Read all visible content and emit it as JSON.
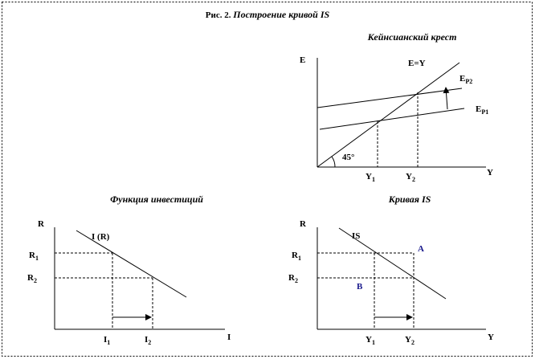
{
  "title": {
    "label": "Рис. 2.",
    "text": "Построение кривой IS"
  },
  "panels": [
    {
      "title": "Кейнсианский крест",
      "y_axis": "E",
      "x_axis": "Y",
      "line_45": "E=Y",
      "ep2": {
        "base": "E",
        "sub": "P2"
      },
      "ep1": {
        "base": "E",
        "sub": "P1"
      },
      "angle": "45°",
      "y1": {
        "base": "Y",
        "sub": "1"
      },
      "y2": {
        "base": "Y",
        "sub": "2"
      }
    },
    {
      "title": "Функция инвестиций",
      "y_axis": "R",
      "x_axis": "I",
      "curve": "I (R)",
      "r1": {
        "base": "R",
        "sub": "1"
      },
      "r2": {
        "base": "R",
        "sub": "2"
      },
      "i1": {
        "base": "I",
        "sub": "1"
      },
      "i2": {
        "base": "I",
        "sub": "2"
      }
    },
    {
      "title": "Кривая IS",
      "y_axis": "R",
      "x_axis": "Y",
      "curve": "IS",
      "point_a": "A",
      "point_b": "B",
      "r1": {
        "base": "R",
        "sub": "1"
      },
      "r2": {
        "base": "R",
        "sub": "2"
      },
      "y1": {
        "base": "Y",
        "sub": "1"
      },
      "y2": {
        "base": "Y",
        "sub": "2"
      }
    }
  ]
}
